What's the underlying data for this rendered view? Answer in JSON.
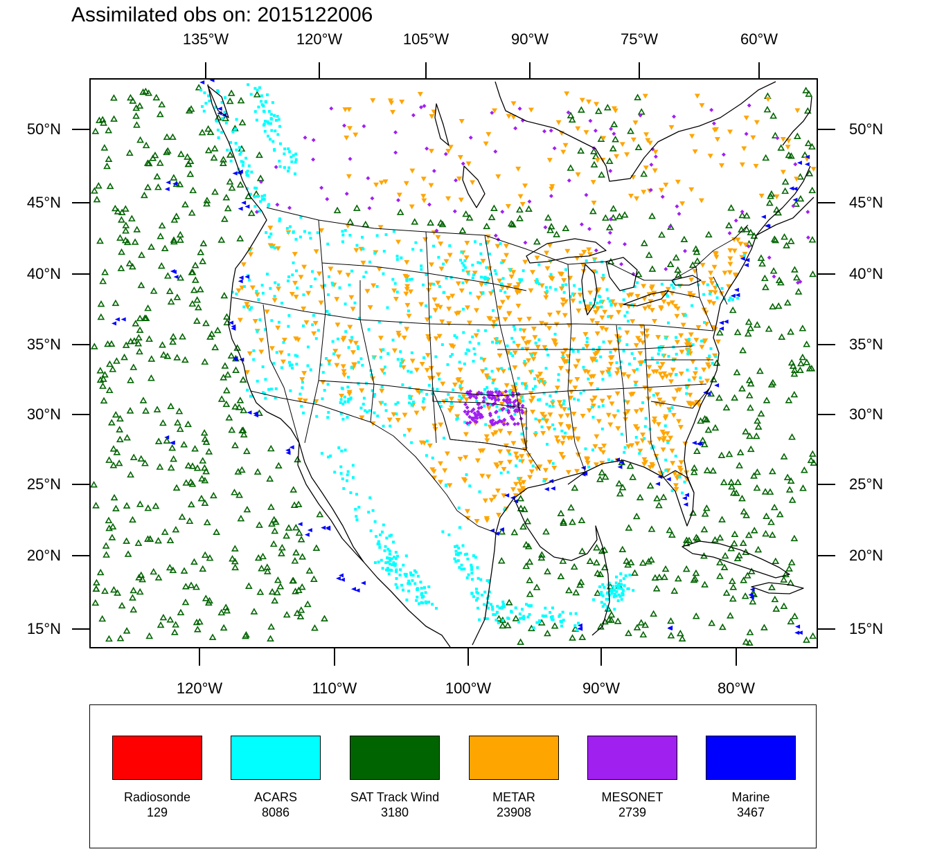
{
  "title": "Assimilated obs on: 2015122006",
  "top_axis_labels": [
    "135°W",
    "120°W",
    "105°W",
    "90°W",
    "75°W",
    "60°W"
  ],
  "bottom_axis_labels": [
    "120°W",
    "110°W",
    "100°W",
    "90°W",
    "80°W"
  ],
  "lat_labels": [
    "50°N",
    "45°N",
    "40°N",
    "35°N",
    "30°N",
    "25°N",
    "20°N",
    "15°N"
  ],
  "colors": {
    "radiosonde": "#ff0000",
    "acars": "#00ffff",
    "sat_track_wind": "#006400",
    "metar": "#ffa500",
    "mesonet": "#a020f0",
    "marine": "#0000ff",
    "coast": "#000000"
  },
  "legend": [
    {
      "name": "Radiosonde",
      "count": "129",
      "color": "#ff0000"
    },
    {
      "name": "ACARS",
      "count": "8086",
      "color": "#00ffff"
    },
    {
      "name": "SAT Track Wind",
      "count": "3180",
      "color": "#006400"
    },
    {
      "name": "METAR",
      "count": "23908",
      "color": "#ffa500"
    },
    {
      "name": "MESONET",
      "count": "2739",
      "color": "#a020f0"
    },
    {
      "name": "Marine",
      "count": "3467",
      "color": "#0000ff"
    }
  ]
}
